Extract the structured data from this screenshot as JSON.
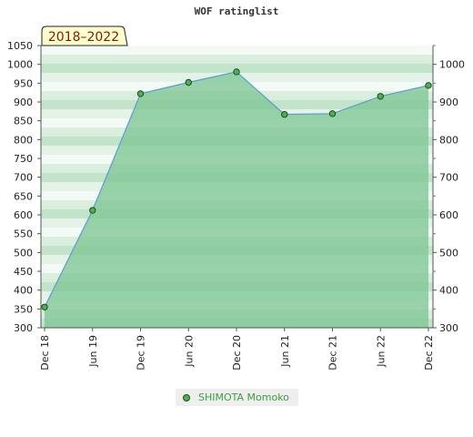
{
  "chart_data": {
    "type": "area",
    "title": "WOF ratinglist",
    "period_label": "2018–2022",
    "x": [
      "Dec 18",
      "Jun 19",
      "Dec 19",
      "Jun 20",
      "Dec 20",
      "Jun 21",
      "Dec 21",
      "Jun 22",
      "Dec 22"
    ],
    "series": [
      {
        "name": "SHIMOTA Momoko",
        "values": [
          355,
          612,
          922,
          952,
          980,
          867,
          869,
          915,
          944
        ]
      }
    ],
    "y_left": {
      "ticks": [
        300,
        350,
        400,
        450,
        500,
        550,
        600,
        650,
        700,
        750,
        800,
        850,
        900,
        950,
        1000,
        1050
      ],
      "ylim": [
        300,
        1050
      ]
    },
    "y_right": {
      "ticks": [
        300,
        400,
        500,
        600,
        700,
        800,
        900,
        1000
      ],
      "ylim": [
        300,
        1050
      ]
    },
    "grid": true,
    "legend_position": "bottom-center",
    "colors": {
      "line": "#5b9bd5",
      "fill": "#7fc795",
      "marker_fill": "#4caf50",
      "marker_stroke": "#1f4a1f",
      "period_box": "#ffffcc",
      "period_text": "#7a1b12"
    }
  }
}
